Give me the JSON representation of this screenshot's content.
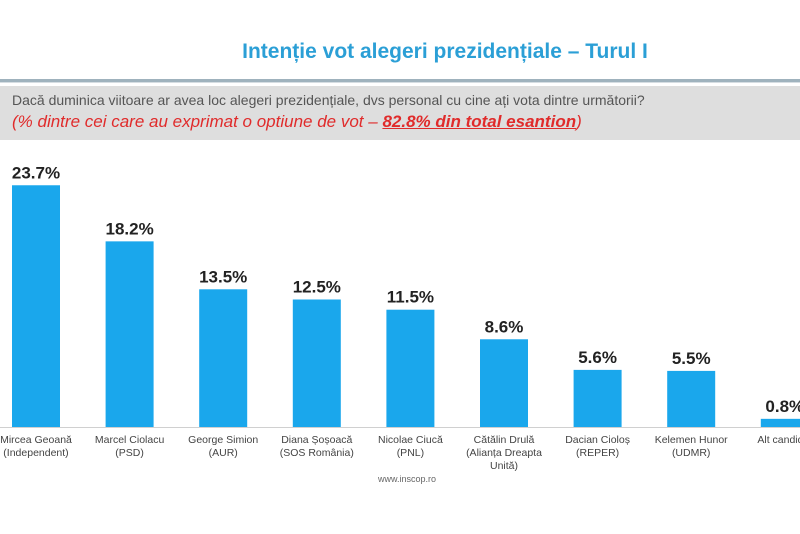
{
  "chart_data": {
    "type": "bar",
    "title": "Intenție vot alegeri prezidențiale – Turul I",
    "question": "Dacă duminica viitoare ar avea loc alegeri prezidențiale, dvs personal cu cine ați vota dintre următorii?",
    "subtitle_prefix": "(% dintre cei care au exprimat o optiune de vot – ",
    "subtitle_emphasis": "82.8% din total esantion",
    "subtitle_suffix": ")",
    "categories": [
      [
        "Mircea Geoană",
        "(Independent)"
      ],
      [
        "Marcel Ciolacu",
        "(PSD)"
      ],
      [
        "George Simion",
        "(AUR)"
      ],
      [
        "Diana Șoșoacă",
        "(SOS România)"
      ],
      [
        "Nicolae Ciucă",
        "(PNL)"
      ],
      [
        "Cătălin Drulă",
        "(Alianța Dreapta",
        "Unită)"
      ],
      [
        "Dacian Cioloș",
        "(REPER)"
      ],
      [
        "Kelemen Hunor",
        "(UDMR)"
      ],
      [
        "Alt candidat"
      ]
    ],
    "values": [
      23.7,
      18.2,
      13.5,
      12.5,
      11.5,
      8.6,
      5.6,
      5.5,
      0.8
    ],
    "value_labels": [
      "23.7%",
      "18.2%",
      "13.5%",
      "12.5%",
      "11.5%",
      "8.6%",
      "5.6%",
      "5.5%",
      "0.8%"
    ],
    "bar_color": "#1aa7ec",
    "grid": false,
    "source": "www.inscop.ro"
  }
}
